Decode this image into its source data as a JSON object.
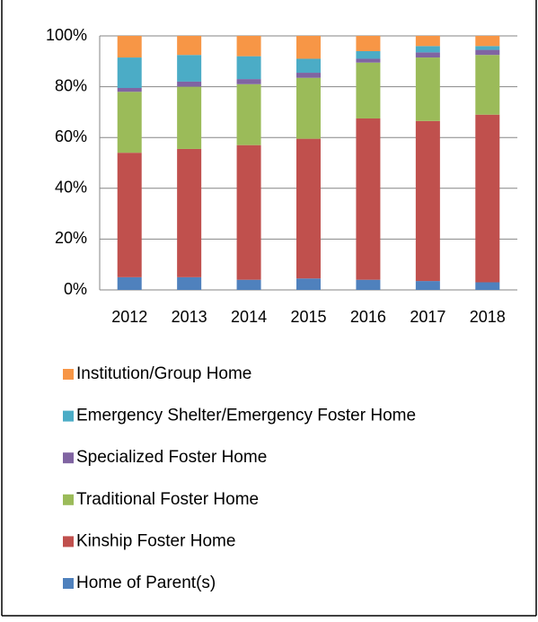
{
  "chart_data": {
    "type": "stacked-bar",
    "categories": [
      "2012",
      "2013",
      "2014",
      "2015",
      "2016",
      "2017",
      "2018"
    ],
    "series": [
      {
        "name": "Home of Parent(s)",
        "color": "#4f81bd",
        "values": [
          5,
          5,
          4,
          4.5,
          4,
          3.5,
          3
        ]
      },
      {
        "name": "Kinship Foster Home",
        "color": "#c0504d",
        "values": [
          49,
          50.5,
          53,
          55,
          63.5,
          63,
          66
        ]
      },
      {
        "name": "Traditional Foster Home",
        "color": "#9bbb59",
        "values": [
          24,
          24.5,
          24,
          24,
          22,
          25,
          23.5
        ]
      },
      {
        "name": "Specialized Foster Home",
        "color": "#8064a2",
        "values": [
          1.5,
          2,
          2,
          2,
          1.5,
          2,
          2
        ]
      },
      {
        "name": "Emergency Shelter/Emergency Foster Home",
        "color": "#4bacc6",
        "values": [
          12,
          10.5,
          9,
          5.5,
          3,
          2.5,
          1.5
        ]
      },
      {
        "name": "Institution/Group Home",
        "color": "#f79646",
        "values": [
          8.5,
          7.5,
          8,
          9,
          6,
          4,
          4
        ]
      }
    ],
    "ylim": [
      0,
      100
    ],
    "yticks": [
      {
        "value": 0,
        "label": "0%"
      },
      {
        "value": 20,
        "label": "20%"
      },
      {
        "value": 40,
        "label": "40%"
      },
      {
        "value": 60,
        "label": "60%"
      },
      {
        "value": 80,
        "label": "80%"
      },
      {
        "value": 100,
        "label": "100%"
      }
    ],
    "grid": true,
    "legend": "bottom"
  }
}
